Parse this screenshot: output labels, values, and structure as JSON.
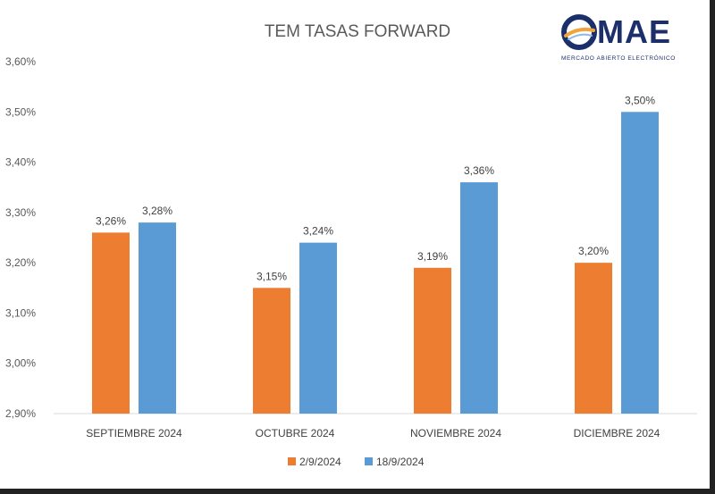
{
  "logo": {
    "word": "MAE",
    "subtitle": "MERCADO ABIERTO ELECTRÓNICO"
  },
  "chart_data": {
    "type": "bar",
    "title": "TEM TASAS FORWARD",
    "xlabel": "",
    "ylabel": "",
    "categories": [
      "SEPTIEMBRE 2024",
      "OCTUBRE 2024",
      "NOVIEMBRE 2024",
      "DICIEMBRE 2024"
    ],
    "series": [
      {
        "name": "2/9/2024",
        "values": [
          3.26,
          3.15,
          3.19,
          3.2
        ],
        "labels": [
          "3,26%",
          "3,15%",
          "3,19%",
          "3,20%"
        ],
        "color": "#ed7d31"
      },
      {
        "name": "18/9/2024",
        "values": [
          3.28,
          3.24,
          3.36,
          3.5
        ],
        "labels": [
          "3,28%",
          "3,24%",
          "3,36%",
          "3,50%"
        ],
        "color": "#5b9bd5"
      }
    ],
    "ylim": [
      2.9,
      3.6
    ],
    "yticks": [
      2.9,
      3.0,
      3.1,
      3.2,
      3.3,
      3.4,
      3.5,
      3.6
    ],
    "ytick_labels": [
      "2,90%",
      "3,00%",
      "3,10%",
      "3,20%",
      "3,30%",
      "3,40%",
      "3,50%",
      "3,60%"
    ],
    "grid": false,
    "legend": "bottom"
  }
}
